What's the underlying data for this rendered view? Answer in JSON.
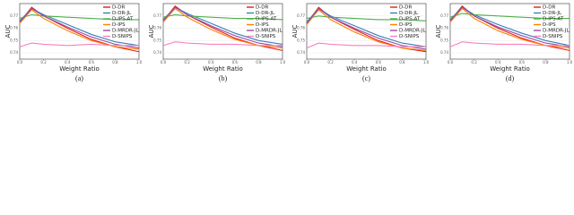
{
  "chart_data": [
    {
      "type": "line",
      "caption": "(a)",
      "xlabel": "Weight Ratio",
      "ylabel": "AUC",
      "x": [
        0,
        0.1,
        0.2,
        0.4,
        0.6,
        0.8,
        1.0
      ],
      "xlim": [
        0,
        1
      ],
      "xticks": [
        {
          "value": 0,
          "label": "0.0"
        },
        0.2,
        0.4,
        0.6,
        0.8,
        {
          "value": 1,
          "label": "1.0"
        }
      ],
      "ylim": [
        0.735,
        0.78
      ],
      "yticks": [
        0.74,
        0.75,
        0.76,
        0.77
      ],
      "legend": "upper right",
      "series": [
        {
          "name": "D-DR",
          "color": "#e41a1c",
          "values": [
            0.765,
            0.777,
            0.77,
            0.76,
            0.751,
            0.745,
            0.741
          ]
        },
        {
          "name": "D-DR-JL",
          "color": "#377eb8",
          "values": [
            0.766,
            0.776,
            0.771,
            0.763,
            0.755,
            0.749,
            0.746
          ]
        },
        {
          "name": "D-IPS-AT",
          "color": "#4daf4a",
          "values": [
            0.768,
            0.771,
            0.77,
            0.769,
            0.768,
            0.767,
            0.767
          ]
        },
        {
          "name": "D-IPS",
          "color": "#ff7f00",
          "values": [
            0.764,
            0.775,
            0.768,
            0.758,
            0.75,
            0.745,
            0.743
          ]
        },
        {
          "name": "D-MRDR-JL",
          "color": "#984ea3",
          "values": [
            0.765,
            0.776,
            0.77,
            0.761,
            0.753,
            0.747,
            0.744
          ]
        },
        {
          "name": "D-SNIPS",
          "color": "#f781bf",
          "values": [
            0.745,
            0.748,
            0.747,
            0.746,
            0.747,
            0.746,
            0.746
          ]
        }
      ]
    },
    {
      "type": "line",
      "caption": "(b)",
      "xlabel": "Weight Ratio",
      "ylabel": "AUC",
      "x": [
        0,
        0.1,
        0.2,
        0.4,
        0.6,
        0.8,
        1.0
      ],
      "xlim": [
        0,
        1
      ],
      "xticks": [
        {
          "value": 0,
          "label": "0.0"
        },
        0.2,
        0.4,
        0.6,
        0.8,
        {
          "value": 1,
          "label": "1.0"
        }
      ],
      "ylim": [
        0.735,
        0.78
      ],
      "yticks": [
        0.74,
        0.75,
        0.76,
        0.77
      ],
      "legend": "upper right",
      "series": [
        {
          "name": "D-DR",
          "color": "#e41a1c",
          "values": [
            0.766,
            0.778,
            0.771,
            0.761,
            0.752,
            0.746,
            0.742
          ]
        },
        {
          "name": "D-DR-JL",
          "color": "#377eb8",
          "values": [
            0.767,
            0.777,
            0.772,
            0.764,
            0.756,
            0.75,
            0.747
          ]
        },
        {
          "name": "D-IPS-AT",
          "color": "#4daf4a",
          "values": [
            0.769,
            0.771,
            0.77,
            0.769,
            0.768,
            0.768,
            0.767
          ]
        },
        {
          "name": "D-IPS",
          "color": "#ff7f00",
          "values": [
            0.765,
            0.776,
            0.769,
            0.759,
            0.751,
            0.746,
            0.744
          ]
        },
        {
          "name": "D-MRDR-JL",
          "color": "#984ea3",
          "values": [
            0.766,
            0.777,
            0.771,
            0.762,
            0.754,
            0.748,
            0.745
          ]
        },
        {
          "name": "D-SNIPS",
          "color": "#f781bf",
          "values": [
            0.746,
            0.749,
            0.748,
            0.747,
            0.747,
            0.746,
            0.746
          ]
        }
      ]
    },
    {
      "type": "line",
      "caption": "(c)",
      "xlabel": "Weight Ratio",
      "ylabel": "AUC",
      "x": [
        0,
        0.1,
        0.2,
        0.4,
        0.6,
        0.8,
        1.0
      ],
      "xlim": [
        0,
        1
      ],
      "xticks": [
        {
          "value": 0,
          "label": "0.0"
        },
        0.2,
        0.4,
        0.6,
        0.8,
        {
          "value": 1,
          "label": "1.0"
        }
      ],
      "ylim": [
        0.735,
        0.78
      ],
      "yticks": [
        0.74,
        0.75,
        0.76,
        0.77
      ],
      "legend": "upper right",
      "series": [
        {
          "name": "D-DR",
          "color": "#e41a1c",
          "values": [
            0.764,
            0.777,
            0.769,
            0.759,
            0.75,
            0.744,
            0.741
          ]
        },
        {
          "name": "D-DR-JL",
          "color": "#377eb8",
          "values": [
            0.765,
            0.776,
            0.77,
            0.762,
            0.754,
            0.748,
            0.745
          ]
        },
        {
          "name": "D-IPS-AT",
          "color": "#4daf4a",
          "values": [
            0.768,
            0.77,
            0.769,
            0.768,
            0.767,
            0.767,
            0.766
          ]
        },
        {
          "name": "D-IPS",
          "color": "#ff7f00",
          "values": [
            0.763,
            0.775,
            0.767,
            0.757,
            0.749,
            0.744,
            0.742
          ]
        },
        {
          "name": "D-MRDR-JL",
          "color": "#984ea3",
          "values": [
            0.764,
            0.776,
            0.769,
            0.76,
            0.752,
            0.746,
            0.743
          ]
        },
        {
          "name": "D-SNIPS",
          "color": "#f781bf",
          "values": [
            0.744,
            0.748,
            0.747,
            0.746,
            0.746,
            0.745,
            0.745
          ]
        }
      ]
    },
    {
      "type": "line",
      "caption": "(d)",
      "xlabel": "Weight Ratio",
      "ylabel": "AUC",
      "x": [
        0,
        0.1,
        0.2,
        0.4,
        0.6,
        0.8,
        1.0
      ],
      "xlim": [
        0,
        1
      ],
      "xticks": [
        {
          "value": 0,
          "label": "0.0"
        },
        0.2,
        0.4,
        0.6,
        0.8,
        {
          "value": 1,
          "label": "1.0"
        }
      ],
      "ylim": [
        0.735,
        0.78
      ],
      "yticks": [
        0.74,
        0.75,
        0.76,
        0.77
      ],
      "legend": "upper right",
      "series": [
        {
          "name": "D-DR",
          "color": "#e41a1c",
          "values": [
            0.766,
            0.778,
            0.77,
            0.76,
            0.752,
            0.746,
            0.742
          ]
        },
        {
          "name": "D-DR-JL",
          "color": "#377eb8",
          "values": [
            0.767,
            0.777,
            0.771,
            0.763,
            0.756,
            0.75,
            0.746
          ]
        },
        {
          "name": "D-IPS-AT",
          "color": "#4daf4a",
          "values": [
            0.769,
            0.772,
            0.771,
            0.77,
            0.769,
            0.768,
            0.768
          ]
        },
        {
          "name": "D-IPS",
          "color": "#ff7f00",
          "values": [
            0.765,
            0.776,
            0.768,
            0.758,
            0.751,
            0.746,
            0.744
          ]
        },
        {
          "name": "D-MRDR-JL",
          "color": "#984ea3",
          "values": [
            0.766,
            0.777,
            0.77,
            0.761,
            0.754,
            0.748,
            0.745
          ]
        },
        {
          "name": "D-SNIPS",
          "color": "#f781bf",
          "values": [
            0.745,
            0.749,
            0.748,
            0.747,
            0.747,
            0.746,
            0.746
          ]
        }
      ]
    }
  ]
}
